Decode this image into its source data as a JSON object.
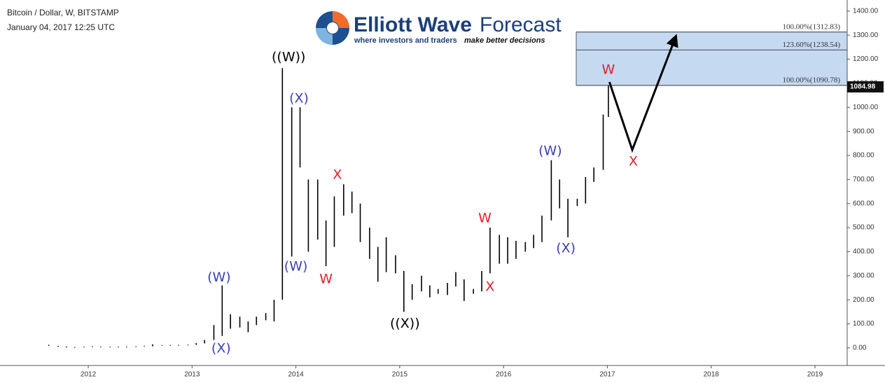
{
  "chart_data": {
    "type": "hlbar",
    "title": "Bitcoin / Dollar, W, BITSTAMP",
    "subtitle": "January 04, 2017 12:25 UTC",
    "brand": {
      "name_bold": "Elliott Wave",
      "name_light": "Forecast",
      "tagline": "where investors and traders",
      "tagline_emphasis": "make better decisions"
    },
    "color": "#000000",
    "x": [
      2011.62,
      2011.71,
      2011.79,
      2011.87,
      2011.96,
      2012.04,
      2012.12,
      2012.21,
      2012.29,
      2012.37,
      2012.46,
      2012.54,
      2012.62,
      2012.71,
      2012.79,
      2012.87,
      2012.96,
      2013.04,
      2013.12,
      2013.21,
      2013.29,
      2013.37,
      2013.46,
      2013.54,
      2013.62,
      2013.71,
      2013.79,
      2013.87,
      2013.96,
      2014.04,
      2014.12,
      2014.21,
      2014.29,
      2014.37,
      2014.46,
      2014.54,
      2014.62,
      2014.71,
      2014.79,
      2014.87,
      2014.96,
      2015.04,
      2015.12,
      2015.21,
      2015.29,
      2015.37,
      2015.46,
      2015.54,
      2015.62,
      2015.71,
      2015.79,
      2015.87,
      2015.96,
      2016.04,
      2016.12,
      2016.21,
      2016.29,
      2016.37,
      2016.46,
      2016.54,
      2016.62,
      2016.71,
      2016.79,
      2016.87,
      2016.96,
      2017.01
    ],
    "high": [
      13,
      9,
      6,
      4,
      5,
      7,
      6,
      5,
      5,
      5.2,
      6.7,
      9,
      15,
      12,
      12.5,
      12.5,
      13.5,
      20,
      33,
      95,
      260,
      140,
      130,
      110,
      130,
      145,
      200,
      1163,
      1000,
      1000,
      700,
      700,
      530,
      630,
      680,
      650,
      600,
      500,
      420,
      460,
      385,
      320,
      265,
      300,
      260,
      245,
      270,
      315,
      285,
      245,
      320,
      500,
      470,
      460,
      445,
      440,
      470,
      550,
      780,
      700,
      620,
      620,
      710,
      750,
      970,
      1090
    ],
    "low": [
      9,
      5,
      2,
      2,
      3,
      5,
      4,
      4,
      4.7,
      4.8,
      5,
      6.5,
      7,
      10,
      10,
      10,
      12,
      13,
      19,
      33,
      50,
      80,
      85,
      65,
      95,
      115,
      110,
      200,
      380,
      750,
      400,
      450,
      340,
      420,
      550,
      560,
      440,
      370,
      275,
      315,
      310,
      150,
      200,
      235,
      210,
      225,
      220,
      255,
      195,
      225,
      235,
      310,
      350,
      350,
      370,
      400,
      415,
      440,
      530,
      580,
      460,
      590,
      600,
      690,
      740,
      960
    ],
    "xlim": [
      2011.15,
      2019.31
    ],
    "xticks": [
      2012,
      2013,
      2014,
      2015,
      2016,
      2017,
      2018,
      2019
    ],
    "ylim": [
      -73,
      1446
    ],
    "yticks": [
      {
        "value": 0,
        "label": "0.00"
      },
      {
        "value": 100,
        "label": "100.00"
      },
      {
        "value": 200,
        "label": "200.00"
      },
      {
        "value": 300,
        "label": "300.00"
      },
      {
        "value": 400,
        "label": "400.00"
      },
      {
        "value": 500,
        "label": "500.00"
      },
      {
        "value": 600,
        "label": "600.00"
      },
      {
        "value": 700,
        "label": "700.00"
      },
      {
        "value": 800,
        "label": "800.00"
      },
      {
        "value": 900,
        "label": "900.00"
      },
      {
        "value": 1000,
        "label": "1000.00"
      },
      {
        "value": 1100,
        "label": "1100.00"
      },
      {
        "value": 1200,
        "label": "1200.00"
      },
      {
        "value": 1300,
        "label": "1300.00"
      },
      {
        "value": 1400,
        "label": "1400.00"
      }
    ],
    "last_price": {
      "value": 1084.98,
      "label": "1084.98"
    },
    "fib_zone": {
      "x_start": 2016.7,
      "color": "#c5d9f1",
      "levels": [
        {
          "value": 1312.83,
          "label": "100.00%(1312.83)"
        },
        {
          "value": 1238.54,
          "label": "123.60%(1238.54)"
        },
        {
          "value": 1090.78,
          "label": "100.00%(1090.78)"
        }
      ]
    },
    "projection": {
      "x": [
        2017.02,
        2017.24,
        2017.66
      ],
      "values": [
        1105,
        823,
        1295
      ]
    },
    "annotations": [
      {
        "text": "((W))",
        "color": "#000000",
        "x": 2013.93,
        "y": 1207
      },
      {
        "text": "(X)",
        "color": "#3a43b8",
        "x": 2014.03,
        "y": 1036
      },
      {
        "text": "(W)",
        "color": "#3a43b8",
        "x": 2013.26,
        "y": 292
      },
      {
        "text": "(X)",
        "color": "#3a43b8",
        "x": 2013.28,
        "y": -3
      },
      {
        "text": "(W)",
        "color": "#3a43b8",
        "x": 2014.0,
        "y": 337
      },
      {
        "text": "X",
        "color": "#e0202a",
        "x": 2014.4,
        "y": 718
      },
      {
        "text": "W",
        "color": "#e0202a",
        "x": 2014.29,
        "y": 285
      },
      {
        "text": "((X))",
        "color": "#000000",
        "x": 2015.05,
        "y": 100
      },
      {
        "text": "W",
        "color": "#e0202a",
        "x": 2015.82,
        "y": 538
      },
      {
        "text": "X",
        "color": "#e0202a",
        "x": 2015.87,
        "y": 253
      },
      {
        "text": "(W)",
        "color": "#3a43b8",
        "x": 2016.45,
        "y": 817
      },
      {
        "text": "(X)",
        "color": "#3a43b8",
        "x": 2016.6,
        "y": 413
      },
      {
        "text": "W",
        "color": "#e0202a",
        "x": 2017.01,
        "y": 1155
      },
      {
        "text": "X",
        "color": "#e0202a",
        "x": 2017.25,
        "y": 774
      }
    ]
  }
}
